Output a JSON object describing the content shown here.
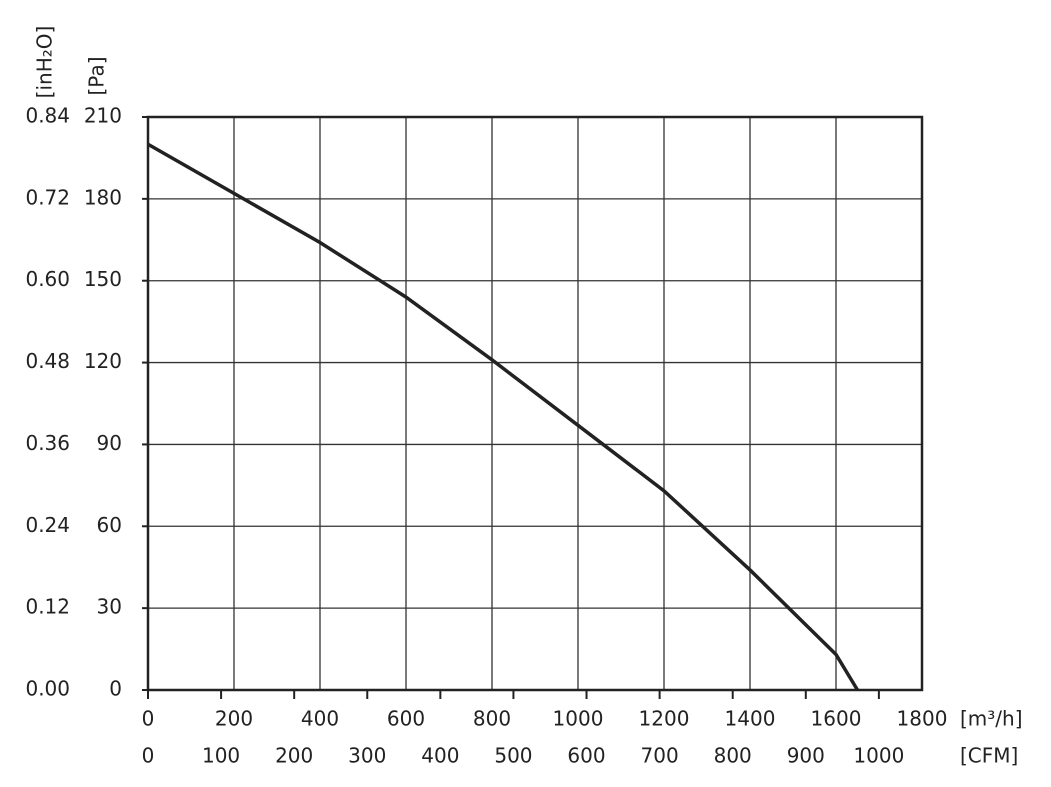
{
  "chart_data": {
    "type": "line",
    "x_label": "[m³/h]",
    "x2_label": "[CFM]",
    "y_label": "[Pa]",
    "y2_label": "[inH₂O]",
    "x": [
      0,
      200,
      400,
      600,
      800,
      1000,
      1200,
      1400,
      1600,
      1650
    ],
    "series": [
      {
        "color": "#222222",
        "values": [
          200,
          182,
          164,
          144,
          121,
          97,
          73,
          44,
          13,
          0
        ]
      }
    ],
    "xlim": [
      0,
      1800
    ],
    "xticks": [
      0,
      200,
      400,
      600,
      800,
      1000,
      1200,
      1400,
      1600,
      1800
    ],
    "x2lim": [
      0,
      1059
    ],
    "x2ticks": [
      0,
      100,
      200,
      300,
      400,
      500,
      600,
      700,
      800,
      900,
      1000
    ],
    "ylim": [
      0,
      210
    ],
    "yticks": [
      0,
      30,
      60,
      90,
      120,
      150,
      180,
      210
    ],
    "y2lim": [
      0,
      0.84
    ],
    "y2ticks": [
      {
        "value": 0,
        "label": "0.00"
      },
      0.12,
      0.24,
      0.36,
      0.48,
      {
        "value": 0.6,
        "label": "0.60"
      },
      0.72,
      0.84
    ],
    "grid": true
  }
}
